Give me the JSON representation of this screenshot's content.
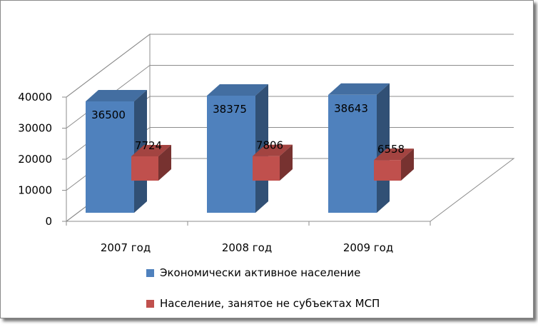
{
  "chart_data": {
    "type": "bar",
    "categories": [
      "2007 год",
      "2008 год",
      "2009 год"
    ],
    "series": [
      {
        "name": "Экономически активное население",
        "values": [
          36500,
          38375,
          38643
        ]
      },
      {
        "name": "Население, занятое не субъектах МСП",
        "values": [
          7724,
          7806,
          6558
        ]
      }
    ],
    "y_ticks": [
      "0",
      "10000",
      "20000",
      "30000",
      "40000"
    ],
    "ylim": [
      0,
      40000
    ],
    "grid": true,
    "legend_position": "bottom",
    "style": "3d-clustered-column",
    "colors": [
      "#4F81BD",
      "#C0504D"
    ]
  }
}
